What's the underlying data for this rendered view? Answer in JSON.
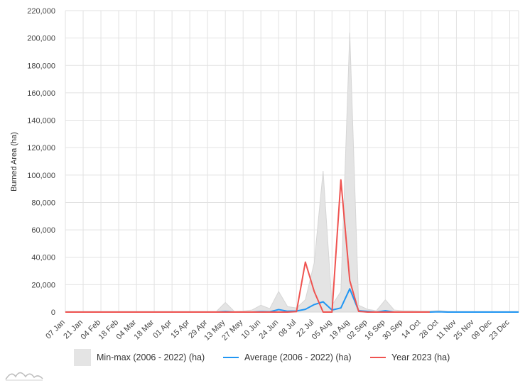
{
  "colors": {
    "minmax_fill": "#e4e4e4",
    "minmax_stroke": "#d6d6d6",
    "average": "#2196f3",
    "year2023": "#ef5350",
    "grid": "#e2e2e2",
    "text": "#444444"
  },
  "legend": {
    "minmax": "Min-max (2006 - 2022) (ha)",
    "average": "Average (2006 - 2022) (ha)",
    "year2023": "Year 2023 (ha)"
  },
  "logo_icon": "amcharts-wave-logo-icon",
  "chart_data": {
    "type": "area",
    "ylabel": "Burned Area (ha)",
    "xlabel": "",
    "ylim": [
      0,
      220000
    ],
    "ytick_step": 20000,
    "yticks": [
      "0",
      "20,000",
      "40,000",
      "60,000",
      "80,000",
      "100,000",
      "120,000",
      "140,000",
      "160,000",
      "180,000",
      "200,000",
      "220,000"
    ],
    "xticks": [
      "07 Jan",
      "21 Jan",
      "04 Feb",
      "18 Feb",
      "04 Mar",
      "18 Mar",
      "01 Apr",
      "15 Apr",
      "29 Apr",
      "13 May",
      "27 May",
      "10 Jun",
      "24 Jun",
      "08 Jul",
      "22 Jul",
      "05 Aug",
      "19 Aug",
      "02 Sep",
      "16 Sep",
      "30 Sep",
      "14 Oct",
      "28 Oct",
      "11 Nov",
      "25 Nov",
      "09 Dec",
      "23 Dec"
    ],
    "x": [
      "07 Jan",
      "14 Jan",
      "21 Jan",
      "28 Jan",
      "04 Feb",
      "11 Feb",
      "18 Feb",
      "25 Feb",
      "04 Mar",
      "11 Mar",
      "18 Mar",
      "25 Mar",
      "01 Apr",
      "08 Apr",
      "15 Apr",
      "22 Apr",
      "29 Apr",
      "06 May",
      "13 May",
      "20 May",
      "27 May",
      "03 Jun",
      "10 Jun",
      "17 Jun",
      "24 Jun",
      "01 Jul",
      "08 Jul",
      "15 Jul",
      "22 Jul",
      "29 Jul",
      "05 Aug",
      "12 Aug",
      "19 Aug",
      "26 Aug",
      "02 Sep",
      "09 Sep",
      "16 Sep",
      "23 Sep",
      "30 Sep",
      "07 Oct",
      "14 Oct",
      "21 Oct",
      "28 Oct",
      "04 Nov",
      "11 Nov",
      "18 Nov",
      "25 Nov",
      "02 Dec",
      "09 Dec",
      "16 Dec",
      "23 Dec",
      "30 Dec"
    ],
    "series": [
      {
        "name": "Min-max (2006 - 2022) (ha)",
        "kind": "range",
        "min": [
          0,
          0,
          0,
          0,
          0,
          0,
          0,
          0,
          0,
          0,
          0,
          0,
          0,
          0,
          0,
          0,
          0,
          0,
          0,
          0,
          0,
          0,
          0,
          0,
          0,
          0,
          0,
          0,
          0,
          0,
          0,
          0,
          0,
          0,
          0,
          0,
          0,
          0,
          0,
          0,
          0,
          0,
          0,
          0,
          0,
          0,
          0,
          0,
          0,
          0,
          0,
          0
        ],
        "max": [
          500,
          500,
          500,
          500,
          500,
          500,
          500,
          500,
          500,
          500,
          500,
          500,
          500,
          500,
          500,
          500,
          500,
          500,
          7000,
          500,
          800,
          1500,
          5000,
          2500,
          15000,
          4000,
          3000,
          9000,
          36000,
          103000,
          5000,
          15000,
          204000,
          5000,
          2000,
          1000,
          9000,
          1500,
          1000,
          1000,
          800,
          800,
          1200,
          600,
          500,
          500,
          500,
          500,
          500,
          500,
          500,
          500
        ]
      },
      {
        "name": "Average (2006 - 2022) (ha)",
        "kind": "line",
        "values": [
          0,
          0,
          0,
          0,
          0,
          0,
          0,
          0,
          0,
          0,
          0,
          0,
          0,
          0,
          0,
          0,
          0,
          0,
          400,
          0,
          0,
          0,
          300,
          200,
          1800,
          600,
          800,
          2000,
          5500,
          7500,
          1500,
          3000,
          17000,
          1000,
          500,
          0,
          1000,
          0,
          0,
          0,
          0,
          0,
          200,
          0,
          0,
          0,
          0,
          0,
          0,
          0,
          0,
          0
        ]
      },
      {
        "name": "Year 2023 (ha)",
        "kind": "line",
        "values": [
          0,
          0,
          0,
          0,
          0,
          0,
          0,
          0,
          0,
          0,
          0,
          0,
          0,
          0,
          0,
          0,
          0,
          0,
          0,
          0,
          0,
          0,
          0,
          0,
          0,
          0,
          300,
          36500,
          15000,
          0,
          0,
          96500,
          23000,
          500,
          0,
          0,
          0,
          0,
          0,
          0,
          0,
          0,
          null,
          null,
          null,
          null,
          null,
          null,
          null,
          null,
          null,
          null
        ]
      }
    ],
    "grid": true,
    "legend_position": "bottom"
  }
}
